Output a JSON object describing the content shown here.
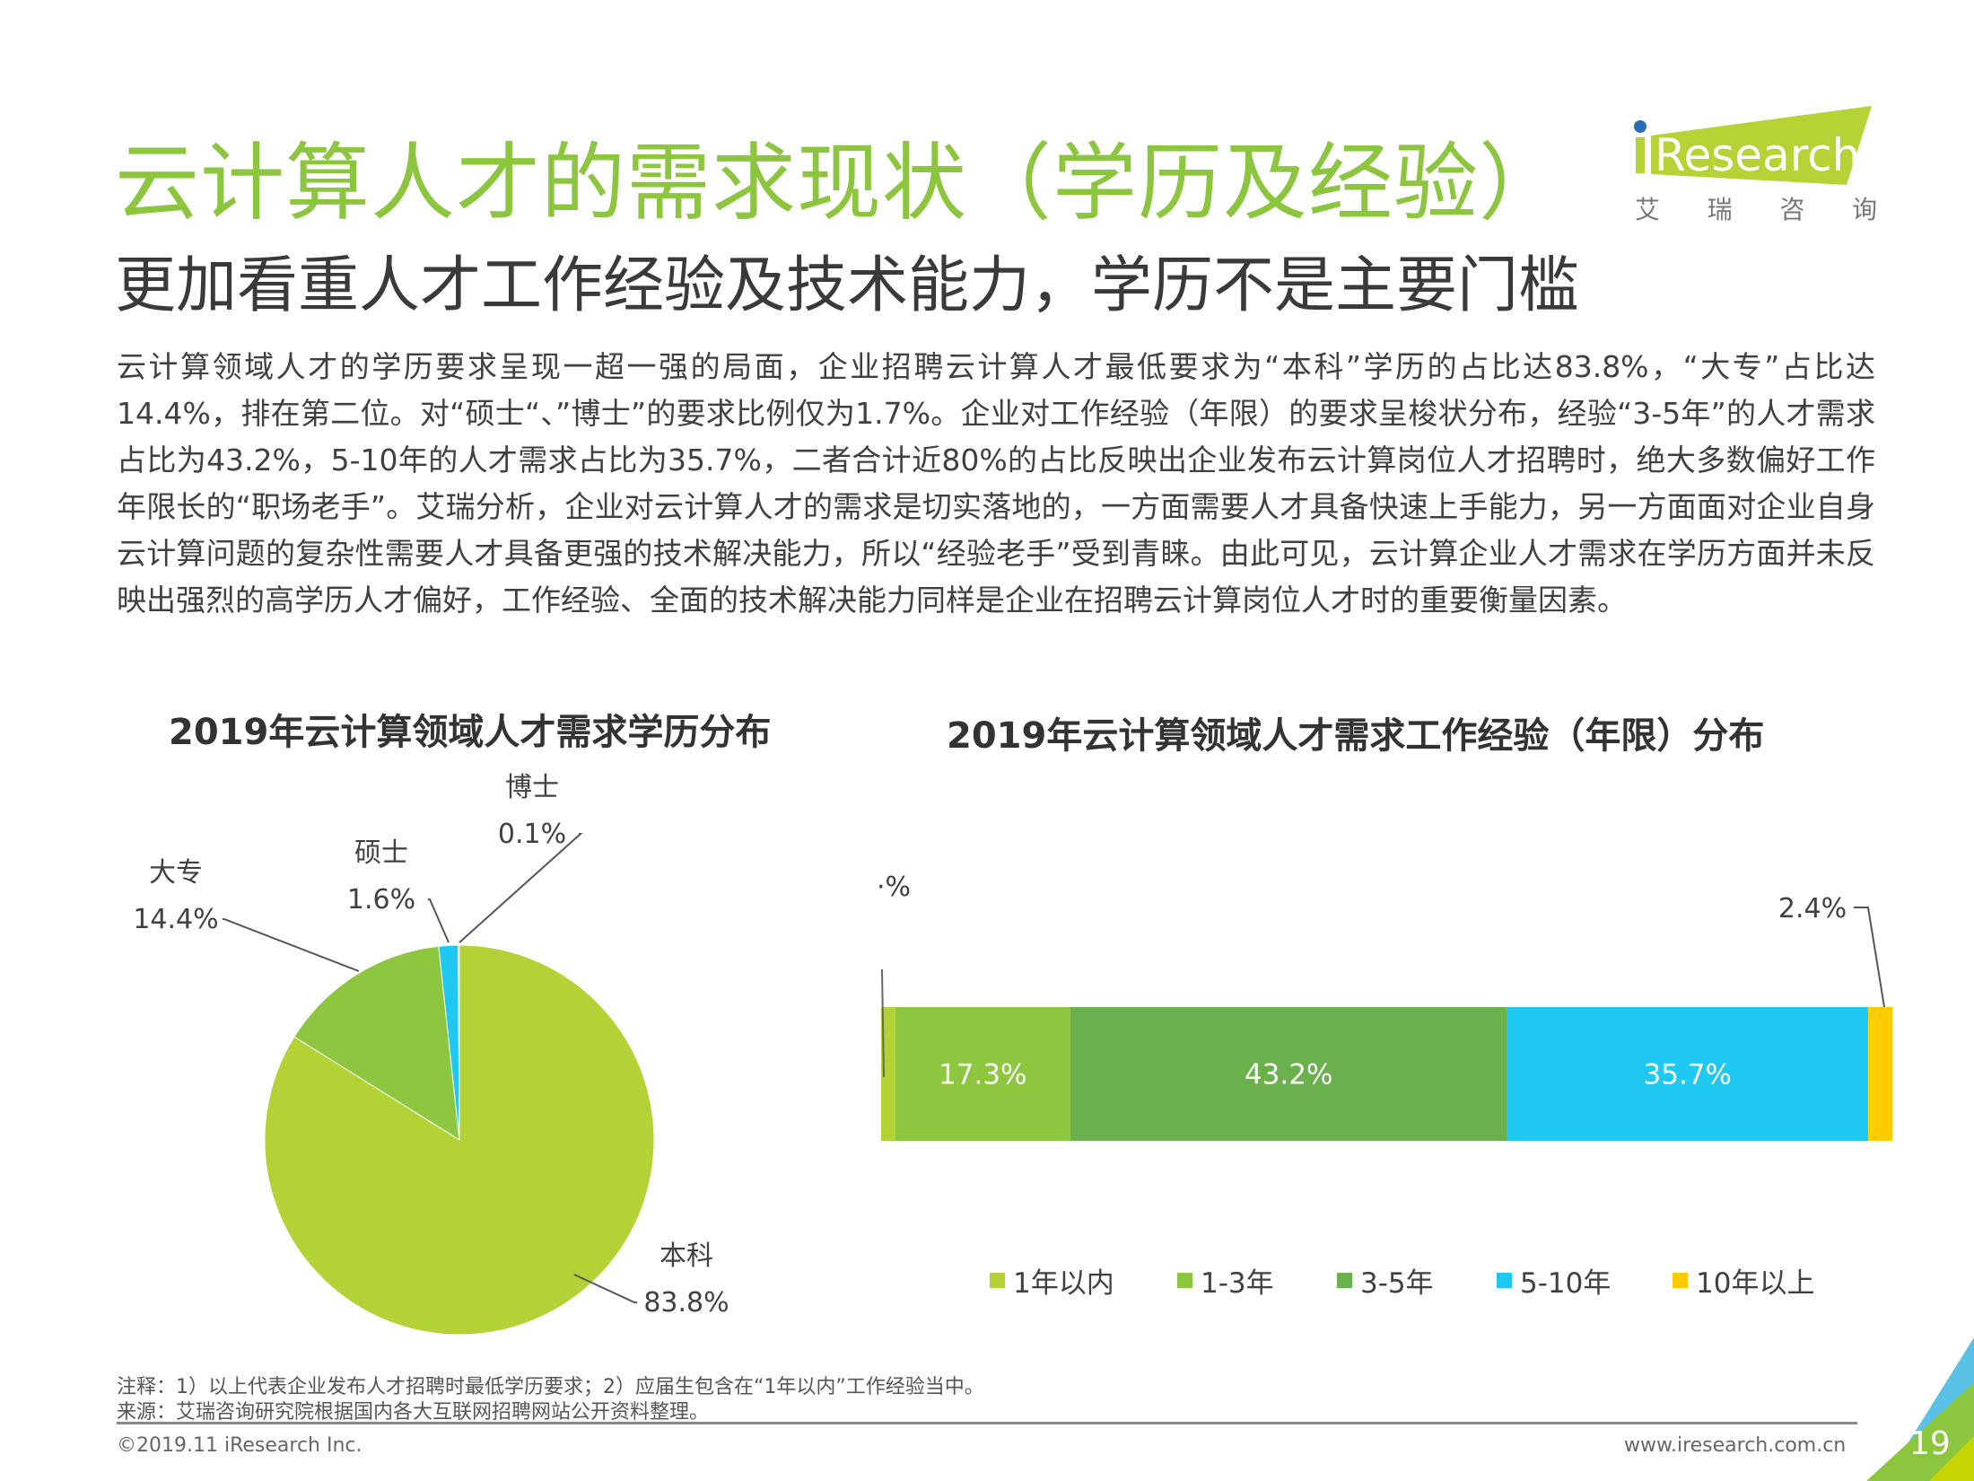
{
  "header": {
    "title": "云计算人才的需求现状（学历及经验）",
    "subtitle": "更加看重人才工作经验及技术能力，学历不是主要门槛",
    "logo_text": "iResearch",
    "logo_cn": [
      "艾",
      "瑞",
      "咨",
      "询"
    ]
  },
  "body": "云计算领域人才的学历要求呈现一超一强的局面，企业招聘云计算人才最低要求为“本科”学历的占比达83.8%，“大专”占比达14.4%，排在第二位。对“硕士“、”博士”的要求比例仅为1.7%。企业对工作经验（年限）的要求呈梭状分布，经验“3-5年”的人才需求占比为43.2%，5-10年的人才需求占比为35.7%，二者合计近80%的占比反映出企业发布云计算岗位人才招聘时，绝大多数偏好工作年限长的“职场老手”。艾瑞分析，企业对云计算人才的需求是切实落地的，一方面需要人才具备快速上手能力，另一方面面对企业自身云计算问题的复杂性需要人才具备更强的技术解决能力，所以“经验老手”受到青睐。由此可见，云计算企业人才需求在学历方面并未反映出强烈的高学历人才偏好，工作经验、全面的技术解决能力同样是企业在招聘云计算岗位人才时的重要衡量因素。",
  "chart_data": [
    {
      "type": "pie",
      "title": "2019年云计算领域人才需求学历分布",
      "slices": [
        {
          "label": "本科",
          "value": 83.8,
          "text": "83.8%",
          "color": "#b2d235"
        },
        {
          "label": "大专",
          "value": 14.4,
          "text": "14.4%",
          "color": "#8dc63f"
        },
        {
          "label": "硕士",
          "value": 1.6,
          "text": "1.6%",
          "color": "#1ec8f0"
        },
        {
          "label": "博士",
          "value": 0.1,
          "text": "0.1%",
          "color": "#6ab04c"
        }
      ]
    },
    {
      "type": "bar",
      "orientation": "horizontal-stacked",
      "title": "2019年云计算领域人才需求工作经验（年限）分布",
      "legend": "bottom",
      "series": [
        {
          "name": "1年以内",
          "value": 1.4,
          "text": "·%",
          "color": "#b2d235"
        },
        {
          "name": "1-3年",
          "value": 17.3,
          "text": "17.3%",
          "color": "#8dc63f"
        },
        {
          "name": "3-5年",
          "value": 43.2,
          "text": "43.2%",
          "color": "#6ab04c"
        },
        {
          "name": "5-10年",
          "value": 35.7,
          "text": "35.7%",
          "color": "#1ec8f0"
        },
        {
          "name": "10年以上",
          "value": 2.4,
          "text": "2.4%",
          "color": "#ffcc00"
        }
      ]
    }
  ],
  "footer": {
    "note": "注释：1）以上代表企业发布人才招聘时最低学历要求；2）应届生包含在“1年以内”工作经验当中。",
    "source": "来源：艾瑞咨询研究院根据国内各大互联网招聘网站公开资料整理。",
    "copyright": "©2019.11 iResearch Inc.",
    "url": "www.iresearch.com.cn",
    "page": "19"
  }
}
